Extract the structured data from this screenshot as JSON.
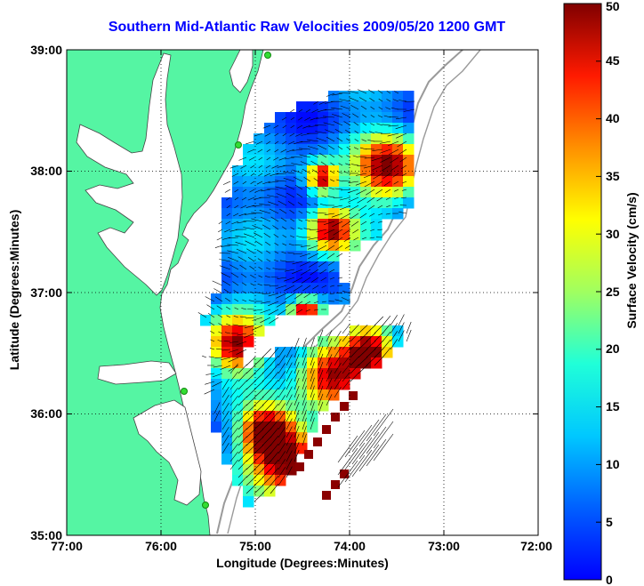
{
  "title": "Southern Mid-Atlantic Raw Velocities 2009/05/20 1200 GMT",
  "xlabel": "Longitude (Degrees:Minutes)",
  "ylabel": "Latitude (Degrees:Minutes)",
  "colorbar_label": "Surface Velocity (cm/s)",
  "x_ticks": [
    "77:00",
    "76:00",
    "75:00",
    "74:00",
    "73:00",
    "72:00"
  ],
  "y_ticks": [
    "39:00",
    "38:00",
    "37:00",
    "36:00",
    "35:00"
  ],
  "colorbar_ticks": [
    "0",
    "5",
    "10",
    "15",
    "20",
    "25",
    "30",
    "35",
    "40",
    "45",
    "50"
  ],
  "colors": {
    "land": "#55f5a3",
    "coast": "#555555",
    "station": "#33dd33",
    "arrow": "#000000",
    "title": "#0000ff"
  },
  "map": {
    "lon_range": [
      -77,
      -72
    ],
    "lat_range": [
      35,
      39
    ],
    "grid": "dotted",
    "colorbar_range": [
      0,
      50
    ],
    "colormap": "jet"
  }
}
